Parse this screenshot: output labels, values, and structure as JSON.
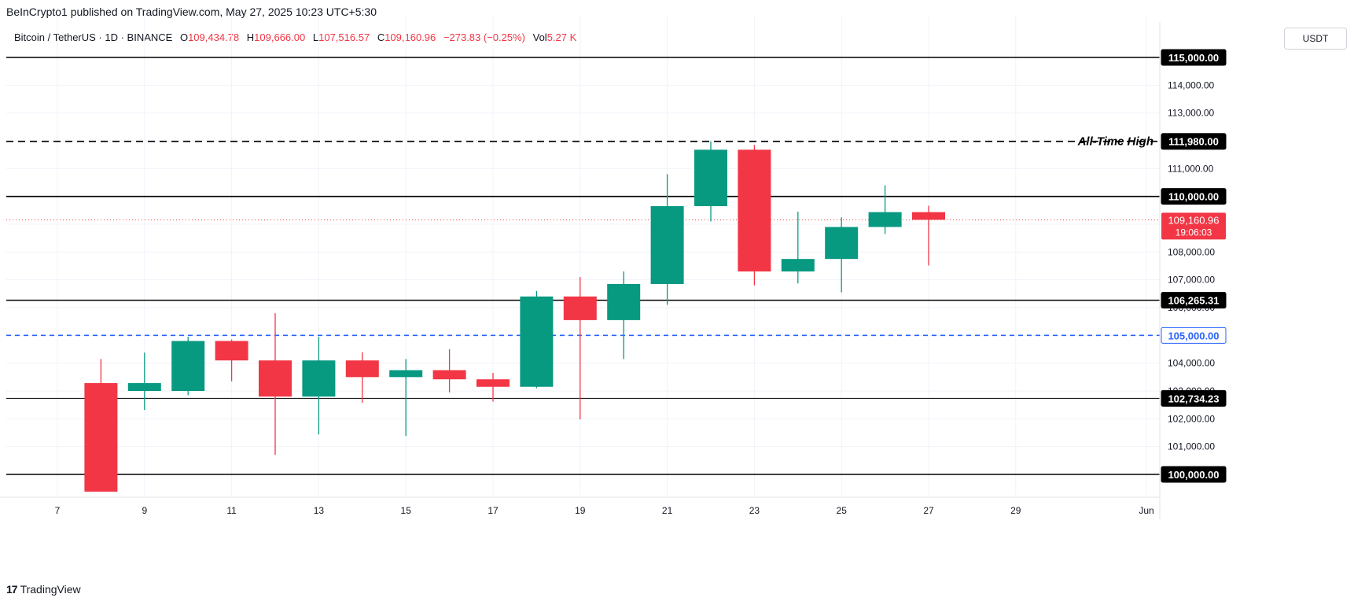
{
  "header": {
    "publisher": "BeInCrypto1 published on TradingView.com, May 27, 2025 10:23 UTC+5:30",
    "symbol": "Bitcoin / TetherUS · 1D · BINANCE",
    "o_label": "O",
    "o_value": "109,434.78",
    "h_label": "H",
    "h_value": "109,666.00",
    "l_label": "L",
    "l_value": "107,516.57",
    "c_label": "C",
    "c_value": "109,160.96",
    "change": "−273.83 (−0.25%)",
    "vol_label": "Vol",
    "vol_value": "5.27 K",
    "currency": "USDT"
  },
  "footer": {
    "brand": "TradingView",
    "logo_glyph": "17"
  },
  "colors": {
    "up": "#089981",
    "down": "#f23645",
    "blue": "#2962ff",
    "line": "#000000"
  },
  "chart_data": {
    "type": "candlestick",
    "symbol": "Bitcoin / TetherUS",
    "interval": "1D",
    "exchange": "BINANCE",
    "ylim": [
      99300,
      116000
    ],
    "x_start_day": 6,
    "x_end_day": 32.5,
    "x_ticks": [
      {
        "day": 7,
        "label": "7"
      },
      {
        "day": 9,
        "label": "9"
      },
      {
        "day": 11,
        "label": "11"
      },
      {
        "day": 13,
        "label": "13"
      },
      {
        "day": 15,
        "label": "15"
      },
      {
        "day": 17,
        "label": "17"
      },
      {
        "day": 19,
        "label": "19"
      },
      {
        "day": 21,
        "label": "21"
      },
      {
        "day": 23,
        "label": "23"
      },
      {
        "day": 25,
        "label": "25"
      },
      {
        "day": 27,
        "label": "27"
      },
      {
        "day": 29,
        "label": "29"
      },
      {
        "day": 32,
        "label": "Jun"
      }
    ],
    "y_ticks": [
      {
        "value": 114000,
        "label": "114,000.00"
      },
      {
        "value": 113000,
        "label": "113,000.00"
      },
      {
        "value": 111000,
        "label": "111,000.00"
      },
      {
        "value": 108000,
        "label": "108,000.00"
      },
      {
        "value": 107000,
        "label": "107,000.00"
      },
      {
        "value": 106000,
        "label": "106,000.00"
      },
      {
        "value": 104000,
        "label": "104,000.00"
      },
      {
        "value": 103000,
        "label": "103,000.00"
      },
      {
        "value": 102000,
        "label": "102,000.00"
      },
      {
        "value": 101000,
        "label": "101,000.00"
      }
    ],
    "candles": [
      {
        "day": 8,
        "open": 103285,
        "high": 104150,
        "low": 99380,
        "close": 99380
      },
      {
        "day": 9,
        "open": 103000,
        "high": 104380,
        "low": 102320,
        "close": 103285
      },
      {
        "day": 10,
        "open": 103000,
        "high": 104950,
        "low": 102850,
        "close": 104800
      },
      {
        "day": 11,
        "open": 104800,
        "high": 104850,
        "low": 103350,
        "close": 104100
      },
      {
        "day": 12,
        "open": 104100,
        "high": 105800,
        "low": 100700,
        "close": 102800
      },
      {
        "day": 13,
        "open": 102800,
        "high": 104950,
        "low": 101440,
        "close": 104100
      },
      {
        "day": 14,
        "open": 104100,
        "high": 104400,
        "low": 102580,
        "close": 103500
      },
      {
        "day": 15,
        "open": 103500,
        "high": 104150,
        "low": 101380,
        "close": 103750
      },
      {
        "day": 16,
        "open": 103750,
        "high": 104500,
        "low": 102950,
        "close": 103420
      },
      {
        "day": 17,
        "open": 103420,
        "high": 103650,
        "low": 102620,
        "close": 103150
      },
      {
        "day": 18,
        "open": 103150,
        "high": 106600,
        "low": 103100,
        "close": 106400
      },
      {
        "day": 19,
        "open": 106400,
        "high": 107100,
        "low": 101980,
        "close": 105550
      },
      {
        "day": 20,
        "open": 105550,
        "high": 107300,
        "low": 104150,
        "close": 106850
      },
      {
        "day": 21,
        "open": 106850,
        "high": 110800,
        "low": 106100,
        "close": 109650
      },
      {
        "day": 22,
        "open": 109650,
        "high": 111980,
        "low": 109100,
        "close": 111680
      },
      {
        "day": 23,
        "open": 111680,
        "high": 111850,
        "low": 106800,
        "close": 107300
      },
      {
        "day": 24,
        "open": 107300,
        "high": 109450,
        "low": 106870,
        "close": 107750
      },
      {
        "day": 25,
        "open": 107750,
        "high": 109250,
        "low": 106550,
        "close": 108900
      },
      {
        "day": 26,
        "open": 108900,
        "high": 110400,
        "low": 108650,
        "close": 109435
      },
      {
        "day": 27,
        "open": 109435,
        "high": 109666,
        "low": 107517,
        "close": 109161
      }
    ],
    "horizontal_lines": [
      {
        "value": 115000,
        "label": "115,000.00",
        "style": "solid",
        "color": "#000000"
      },
      {
        "value": 111980,
        "label": "111,980.00",
        "style": "dashed",
        "color": "#000000",
        "annotation": "All-Time High"
      },
      {
        "value": 110000,
        "label": "110,000.00",
        "style": "solid",
        "color": "#000000"
      },
      {
        "value": 106265.31,
        "label": "106,265.31",
        "style": "solid",
        "color": "#000000"
      },
      {
        "value": 105000,
        "label": "105,000.00",
        "style": "dashed",
        "color": "#2962ff"
      },
      {
        "value": 102734.23,
        "label": "102,734.23",
        "style": "solid",
        "color": "#000000"
      },
      {
        "value": 100000,
        "label": "100,000.00",
        "style": "solid",
        "color": "#000000"
      }
    ],
    "last_price": {
      "value": 109160.96,
      "label": "109,160.96",
      "countdown": "19:06:03"
    }
  }
}
